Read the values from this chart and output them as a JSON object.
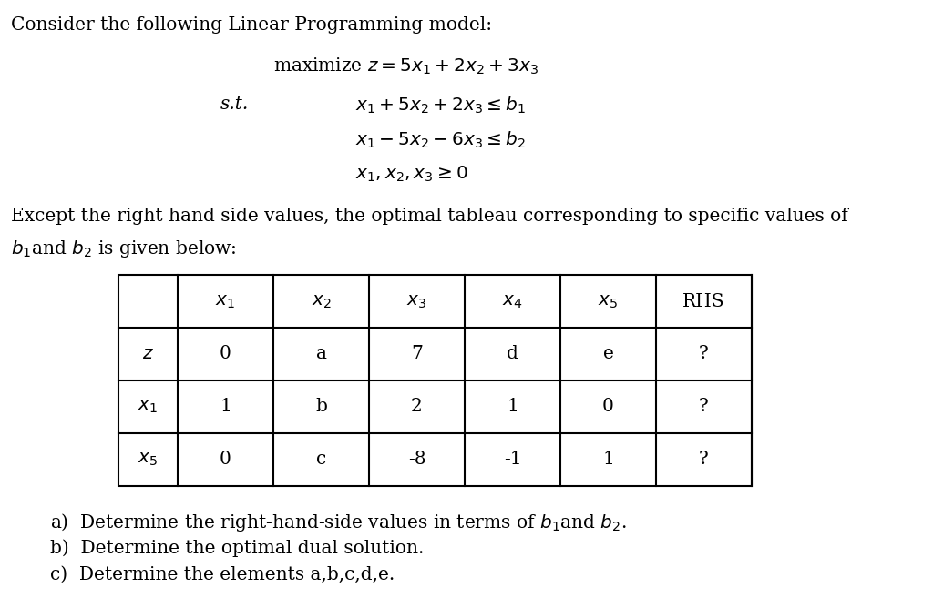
{
  "title_text": "Consider the following Linear Programming model:",
  "maximize_text": "maximize $z = 5x_1 + 2x_2 + 3x_3$",
  "st_text": "s.t.",
  "constraint1": "$x_1 + 5x_2 + 2x_3 \\leq b_1$",
  "constraint2": "$x_1 - 5x_2 - 6x_3 \\leq b_2$",
  "nonneg": "$x_1, x_2, x_3 \\geq 0$",
  "desc_line1": "Except the right hand side values, the optimal tableau corresponding to specific values of",
  "desc_line2": "$b_1$and $b_2$ is given below:",
  "col_headers": [
    "",
    "$x_1$",
    "$x_2$",
    "$x_3$",
    "$x_4$",
    "$x_5$",
    "RHS"
  ],
  "rows": [
    [
      "$z$",
      "0",
      "a",
      "7",
      "d",
      "e",
      "?"
    ],
    [
      "$x_1$",
      "1",
      "b",
      "2",
      "1",
      "0",
      "?"
    ],
    [
      "$x_5$",
      "0",
      "c",
      "-8",
      "-1",
      "1",
      "?"
    ]
  ],
  "q1": "a)  Determine the right-hand-side values in terms of $b_1$and $b_2$.",
  "q2": "b)  Determine the optimal dual solution.",
  "q3": "c)  Determine the elements a,b,c,d,e.",
  "bg_color": "#ffffff",
  "text_color": "#000000",
  "font_size": 14.5
}
